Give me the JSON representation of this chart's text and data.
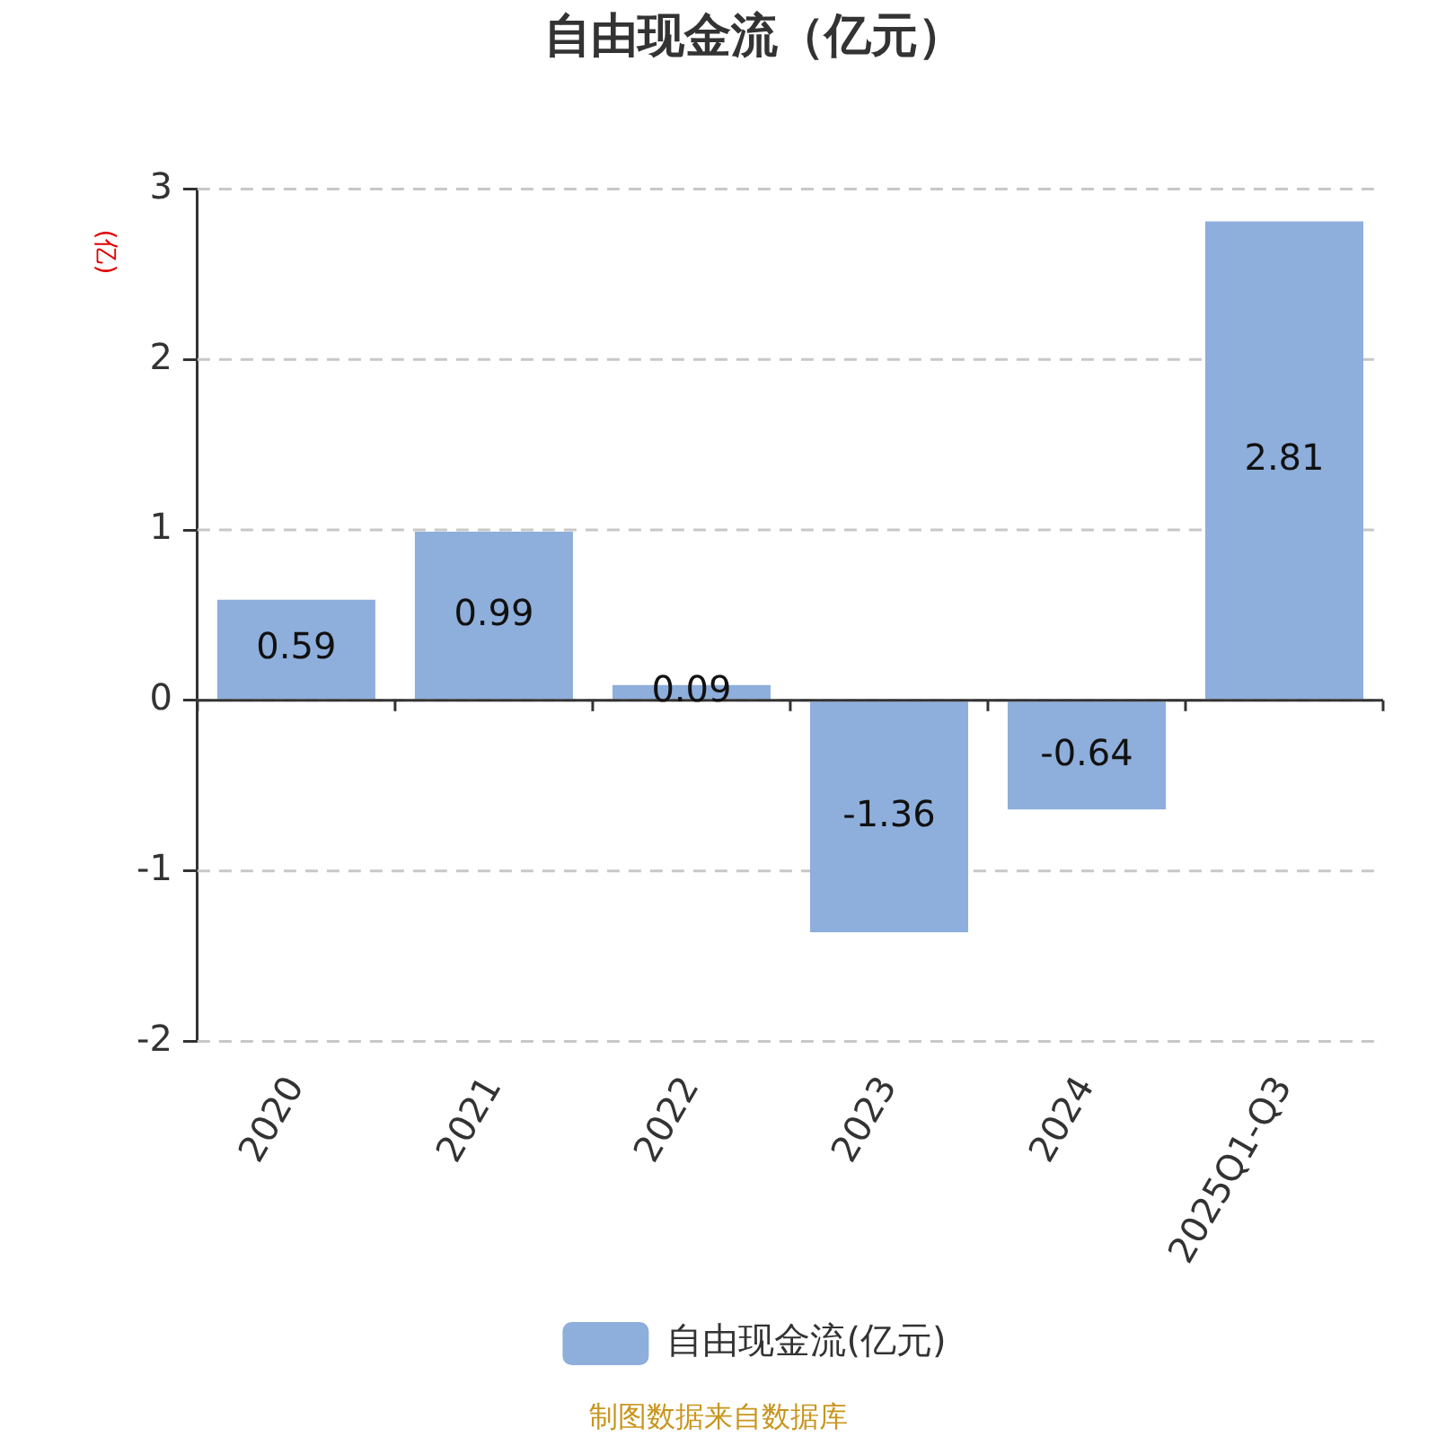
{
  "chart_data": {
    "type": "bar",
    "title": "自由现金流（亿元）",
    "ylabel": "(亿)",
    "categories": [
      "2020",
      "2021",
      "2022",
      "2023",
      "2024",
      "2025Q1-Q3"
    ],
    "series": [
      {
        "name": "自由现金流(亿元)",
        "color": "#8eaedb",
        "values": [
          0.59,
          0.99,
          0.09,
          -1.36,
          -0.64,
          2.81
        ]
      }
    ],
    "ylim": [
      -2,
      3
    ],
    "yticks": [
      -2,
      -1,
      0,
      1,
      2,
      3
    ],
    "grid": "y",
    "legend": "bottom",
    "data_labels": true,
    "annotations": [
      "制图数据来自数据库"
    ]
  }
}
